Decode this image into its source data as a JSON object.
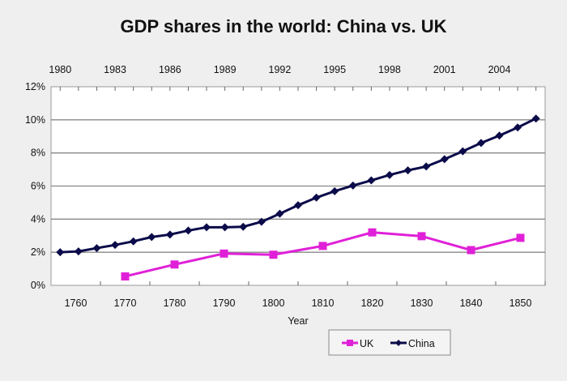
{
  "chart_data": {
    "type": "line",
    "title": "GDP shares in the world: China vs. UK",
    "xlabel": "Year",
    "ylabel": "",
    "ylim": [
      0,
      12
    ],
    "yticks": [
      "0%",
      "2%",
      "4%",
      "6%",
      "8%",
      "10%",
      "12%"
    ],
    "grid": true,
    "legend_placement": "bottom-right",
    "x_bottom": {
      "range": [
        1755,
        1855
      ],
      "tick_labels": [
        "1760",
        "1770",
        "1780",
        "1790",
        "1800",
        "1810",
        "1820",
        "1830",
        "1840",
        "1850"
      ]
    },
    "x_top": {
      "range": [
        1979.5,
        2006.5
      ],
      "tick_labels": [
        "1980",
        "1983",
        "1986",
        "1989",
        "1992",
        "1995",
        "1998",
        "2001",
        "2004"
      ]
    },
    "series": [
      {
        "name": "UK",
        "axis": "bottom",
        "color": "#e020d8",
        "marker": "square",
        "x": [
          1770,
          1780,
          1790,
          1800,
          1810,
          1820,
          1830,
          1840,
          1850
        ],
        "values": [
          0.54,
          1.26,
          1.92,
          1.85,
          2.38,
          3.2,
          2.97,
          2.13,
          2.87
        ]
      },
      {
        "name": "China",
        "axis": "top",
        "color": "#0b0b4a",
        "marker": "diamond",
        "x": [
          1980,
          1981,
          1982,
          1983,
          1984,
          1985,
          1986,
          1987,
          1988,
          1989,
          1990,
          1991,
          1992,
          1993,
          1994,
          1995,
          1996,
          1997,
          1998,
          1999,
          2000,
          2001,
          2002,
          2003,
          2004,
          2005,
          2006
        ],
        "values": [
          2.0,
          2.05,
          2.25,
          2.44,
          2.66,
          2.92,
          3.07,
          3.31,
          3.51,
          3.51,
          3.54,
          3.84,
          4.33,
          4.84,
          5.3,
          5.69,
          6.03,
          6.34,
          6.67,
          6.95,
          7.18,
          7.62,
          8.1,
          8.6,
          9.05,
          9.54,
          10.08
        ]
      }
    ]
  }
}
